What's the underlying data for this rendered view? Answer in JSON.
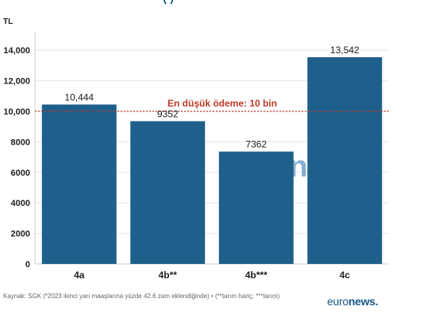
{
  "header": {
    "title_fragment": "(                    )"
  },
  "chart_data": {
    "type": "bar",
    "categories": [
      "4a",
      "4b**",
      "4b***",
      "4c"
    ],
    "values": [
      10444,
      9352,
      7362,
      13542
    ],
    "value_labels": [
      "10,444",
      "9352",
      "7362",
      "13,542"
    ],
    "ylabel": "TL",
    "ylim": [
      0,
      15000
    ],
    "yticks": [
      0,
      2000,
      4000,
      6000,
      8000,
      10000,
      12000,
      14000
    ],
    "ytick_labels": [
      "0",
      "2000",
      "4000",
      "6000",
      "8000",
      "10,000",
      "12,000",
      "14,000"
    ],
    "grid": true,
    "reference_line": {
      "value": 10000,
      "label": "En düşük ödeme: 10 bin",
      "color": "#c0392b"
    },
    "bar_color": "#1f5f8b",
    "watermark": "euronews."
  },
  "footer": {
    "source": "Kaynak: SGK (*2023 ikinci yarı maaşlarına yüzde 42.6 zam eklendiğinde) • (**tarım hariç; ***tarım)",
    "brand_light": "euro",
    "brand_bold": "news."
  }
}
